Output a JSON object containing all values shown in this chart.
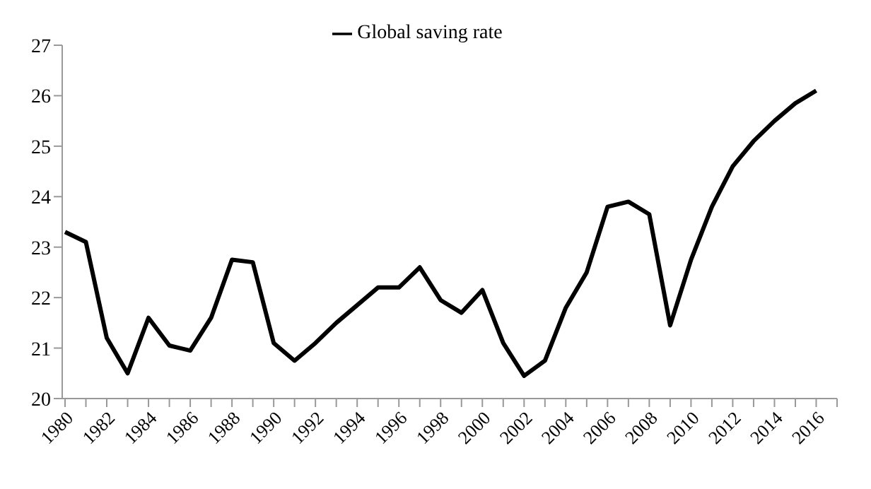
{
  "chart_data": {
    "type": "line",
    "categories": [
      "1980",
      null,
      "1982",
      null,
      "1984",
      null,
      "1986",
      null,
      "1988",
      null,
      "1990",
      null,
      "1992",
      null,
      "1994",
      null,
      "1996",
      null,
      "1998",
      null,
      "2000",
      null,
      "2002",
      null,
      "2004",
      null,
      "2006",
      null,
      "2008",
      null,
      "2010",
      null,
      "2012",
      null,
      "2014",
      null,
      "2016",
      null
    ],
    "series": [
      {
        "name": "Global saving rate",
        "color": "#000000",
        "values": [
          23.3,
          23.1,
          21.2,
          20.5,
          21.6,
          21.05,
          20.95,
          21.6,
          22.75,
          22.7,
          21.1,
          20.75,
          21.1,
          21.5,
          21.85,
          22.2,
          22.2,
          22.6,
          21.95,
          21.7,
          22.15,
          21.1,
          20.45,
          20.75,
          21.8,
          22.5,
          23.8,
          23.9,
          23.65,
          21.45,
          22.75,
          23.8,
          24.6,
          25.1,
          25.5,
          25.85,
          26.1,
          null
        ]
      }
    ],
    "ylim": [
      20,
      27
    ],
    "yticks": [
      20,
      21,
      22,
      23,
      24,
      25,
      26,
      27
    ],
    "legend": "top",
    "grid": false,
    "marker": "none",
    "line_style": "solid"
  }
}
